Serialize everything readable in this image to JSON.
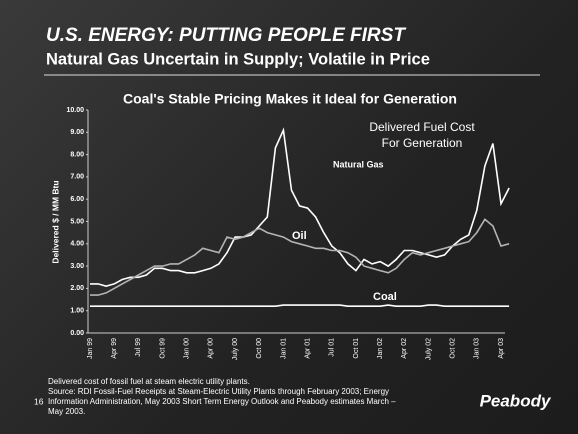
{
  "header": {
    "title": "U.S. ENERGY: PUTTING PEOPLE FIRST",
    "subtitle": "Natural Gas Uncertain in Supply; Volatile in Price"
  },
  "chart_data": {
    "type": "line",
    "title": "Coal's Stable Pricing Makes it Ideal for Generation",
    "y_label": "Delivered $ / MM Btu",
    "categories": [
      "Jan 99",
      null,
      null,
      "Apr 99",
      null,
      null,
      "Jul 99",
      null,
      null,
      "Oct 99",
      null,
      null,
      "Jan 00",
      null,
      null,
      "Apr 00",
      null,
      null,
      "July 00",
      null,
      null,
      "Oct 00",
      null,
      null,
      "Jan 01",
      null,
      null,
      "Apr 01",
      null,
      null,
      "Jul 01",
      null,
      null,
      "Oct 01",
      null,
      null,
      "Jan 02",
      null,
      null,
      "Apr 02",
      null,
      null,
      "July 02",
      null,
      null,
      "Oct 02",
      null,
      null,
      "Jan 03",
      null,
      null,
      "Apr 03",
      null
    ],
    "series": [
      {
        "name": "Natural Gas",
        "color": "#ffffff",
        "values": [
          2.2,
          2.2,
          2.1,
          2.2,
          2.4,
          2.5,
          2.5,
          2.6,
          2.9,
          2.9,
          2.8,
          2.8,
          2.7,
          2.7,
          2.8,
          2.9,
          3.1,
          3.6,
          4.3,
          4.3,
          4.4,
          4.8,
          5.2,
          8.3,
          9.1,
          6.4,
          5.7,
          5.6,
          5.2,
          4.5,
          3.9,
          3.6,
          3.1,
          2.8,
          3.3,
          3.1,
          3.2,
          3.0,
          3.3,
          3.7,
          3.7,
          3.6,
          3.5,
          3.4,
          3.5,
          3.9,
          4.2,
          4.4,
          5.5,
          7.5,
          8.5,
          5.8,
          6.5
        ]
      },
      {
        "name": "Oil",
        "color": "#b4b4b4",
        "values": [
          1.7,
          1.7,
          1.8,
          2.0,
          2.2,
          2.4,
          2.6,
          2.8,
          3.0,
          3.0,
          3.1,
          3.1,
          3.3,
          3.5,
          3.8,
          3.7,
          3.6,
          4.3,
          4.2,
          4.3,
          4.5,
          4.7,
          4.5,
          4.4,
          4.3,
          4.1,
          4.0,
          3.9,
          3.8,
          3.8,
          3.7,
          3.7,
          3.6,
          3.4,
          3.0,
          2.9,
          2.8,
          2.7,
          2.9,
          3.3,
          3.6,
          3.5,
          3.6,
          3.7,
          3.8,
          3.9,
          4.0,
          4.1,
          4.5,
          5.1,
          4.8,
          3.9,
          4.0
        ]
      },
      {
        "name": "Coal",
        "color": "#ffffff",
        "values": [
          1.2,
          1.2,
          1.2,
          1.2,
          1.2,
          1.2,
          1.2,
          1.2,
          1.2,
          1.2,
          1.2,
          1.2,
          1.2,
          1.2,
          1.2,
          1.2,
          1.2,
          1.2,
          1.2,
          1.2,
          1.2,
          1.2,
          1.2,
          1.2,
          1.25,
          1.25,
          1.25,
          1.25,
          1.25,
          1.25,
          1.25,
          1.25,
          1.2,
          1.2,
          1.2,
          1.2,
          1.2,
          1.25,
          1.2,
          1.2,
          1.2,
          1.2,
          1.25,
          1.25,
          1.2,
          1.2,
          1.2,
          1.2,
          1.2,
          1.2,
          1.2,
          1.2,
          1.2
        ]
      }
    ],
    "ylim": [
      0,
      10
    ],
    "yticks": [
      {
        "value": 0,
        "label": "0.00"
      },
      {
        "value": 1,
        "label": "1.00"
      },
      {
        "value": 2,
        "label": "2.00"
      },
      {
        "value": 3,
        "label": "3.00"
      },
      {
        "value": 4,
        "label": "4.00"
      },
      {
        "value": 5,
        "label": "5.00"
      },
      {
        "value": 6,
        "label": "6.00"
      },
      {
        "value": 7,
        "label": "7.00"
      },
      {
        "value": 8,
        "label": "8.00"
      },
      {
        "value": 9,
        "label": "9.00"
      },
      {
        "value": 10,
        "label": "10.00"
      }
    ],
    "annotation": [
      "Delivered Fuel Cost",
      "For Generation"
    ]
  },
  "footnote": [
    "Delivered cost of fossil fuel at steam electric utility plants.",
    "Source: RDI Fossil-Fuel Receipts at Steam-Electric Utility Plants through February 2003; Energy",
    "Information Administration, May 2003 Short Term Energy Outlook and Peabody estimates March –",
    "May 2003."
  ],
  "page_number": "16",
  "logo": "Peabody"
}
